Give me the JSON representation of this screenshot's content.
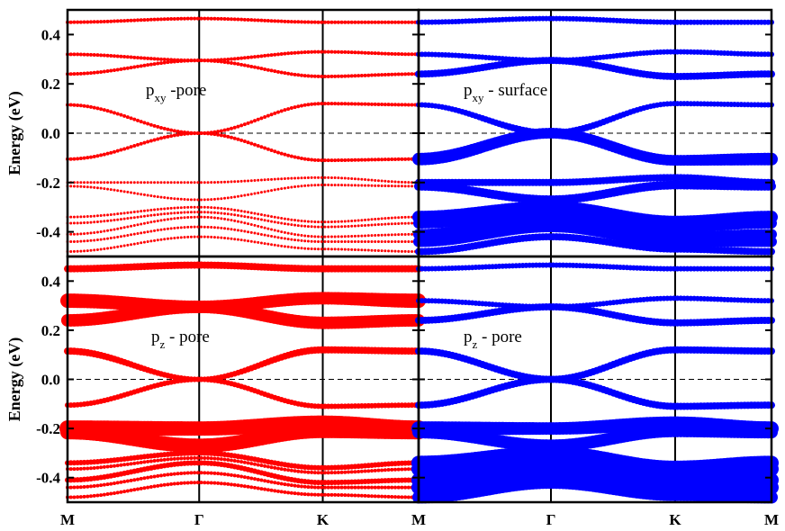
{
  "chart_data": {
    "type": "scatter",
    "ylabel": "Energy (eV)",
    "ylim": [
      -0.5,
      0.5
    ],
    "y_ticks": [
      "0.4",
      "0.2",
      "0.0",
      "-0.2",
      "-0.4"
    ],
    "y_tick_values": [
      0.4,
      0.2,
      0.0,
      -0.2,
      -0.4
    ],
    "x_ticks": [
      "M",
      "Γ",
      "K",
      "M"
    ],
    "fermi_level": 0.0,
    "panels": [
      {
        "label_main": "p",
        "label_sub": "xy",
        "label_rest": " -pore",
        "color": "#ff0000",
        "bands": [
          {
            "E": [
              0.45,
              0.465,
              0.45,
              0.45
            ],
            "w": [
              2,
              2,
              2,
              2
            ]
          },
          {
            "E": [
              0.32,
              0.295,
              0.33,
              0.32
            ],
            "w": [
              2,
              2,
              2,
              2
            ]
          },
          {
            "E": [
              0.24,
              0.295,
              0.23,
              0.24
            ],
            "w": [
              2,
              2,
              2,
              2
            ]
          },
          {
            "E": [
              0.115,
              0.0,
              0.12,
              0.115
            ],
            "w": [
              2,
              2,
              2,
              2
            ]
          },
          {
            "E": [
              -0.105,
              0.0,
              -0.11,
              -0.105
            ],
            "w": [
              2,
              2,
              2,
              2
            ]
          },
          {
            "E": [
              -0.2,
              -0.2,
              -0.18,
              -0.2
            ],
            "w": [
              1.5,
              1.5,
              1.5,
              1.5
            ]
          },
          {
            "E": [
              -0.215,
              -0.27,
              -0.21,
              -0.215
            ],
            "w": [
              1.5,
              1.5,
              1.5,
              1.5
            ]
          },
          {
            "E": [
              -0.34,
              -0.3,
              -0.36,
              -0.34
            ],
            "w": [
              1.5,
              1.5,
              1.5,
              1.5
            ]
          },
          {
            "E": [
              -0.365,
              -0.32,
              -0.38,
              -0.365
            ],
            "w": [
              1.5,
              1.5,
              1.5,
              1.5
            ]
          },
          {
            "E": [
              -0.41,
              -0.34,
              -0.42,
              -0.41
            ],
            "w": [
              1.5,
              1.5,
              1.5,
              1.5
            ]
          },
          {
            "E": [
              -0.44,
              -0.38,
              -0.44,
              -0.44
            ],
            "w": [
              1.5,
              1.5,
              1.5,
              1.5
            ]
          },
          {
            "E": [
              -0.48,
              -0.42,
              -0.47,
              -0.48
            ],
            "w": [
              1.5,
              1.5,
              1.5,
              1.5
            ]
          }
        ]
      },
      {
        "label_main": "p",
        "label_sub": "xy",
        "label_rest": " - surface",
        "color": "#0000ff",
        "bands": [
          {
            "E": [
              0.45,
              0.465,
              0.45,
              0.45
            ],
            "w": [
              3,
              3,
              3,
              3
            ]
          },
          {
            "E": [
              0.32,
              0.295,
              0.33,
              0.32
            ],
            "w": [
              3,
              3,
              3,
              3
            ]
          },
          {
            "E": [
              0.24,
              0.295,
              0.23,
              0.24
            ],
            "w": [
              4,
              4,
              4,
              4
            ]
          },
          {
            "E": [
              0.115,
              0.0,
              0.12,
              0.115
            ],
            "w": [
              3,
              4,
              3,
              3
            ]
          },
          {
            "E": [
              -0.105,
              0.0,
              -0.11,
              -0.105
            ],
            "w": [
              7,
              6,
              6,
              7
            ]
          },
          {
            "E": [
              -0.2,
              -0.2,
              -0.18,
              -0.2
            ],
            "w": [
              4,
              4,
              4,
              4
            ]
          },
          {
            "E": [
              -0.215,
              -0.27,
              -0.21,
              -0.215
            ],
            "w": [
              5,
              5,
              5,
              5
            ]
          },
          {
            "E": [
              -0.34,
              -0.3,
              -0.36,
              -0.34
            ],
            "w": [
              7,
              7,
              7,
              7
            ]
          },
          {
            "E": [
              -0.365,
              -0.32,
              -0.38,
              -0.365
            ],
            "w": [
              6,
              6,
              6,
              6
            ]
          },
          {
            "E": [
              -0.41,
              -0.34,
              -0.42,
              -0.41
            ],
            "w": [
              6,
              6,
              6,
              6
            ]
          },
          {
            "E": [
              -0.44,
              -0.38,
              -0.44,
              -0.44
            ],
            "w": [
              6,
              6,
              6,
              6
            ]
          },
          {
            "E": [
              -0.48,
              -0.42,
              -0.47,
              -0.48
            ],
            "w": [
              4,
              4,
              4,
              4
            ]
          }
        ]
      },
      {
        "label_main": "p",
        "label_sub": "z",
        "label_rest": " - pore",
        "color": "#ff0000",
        "bands": [
          {
            "E": [
              0.45,
              0.465,
              0.45,
              0.45
            ],
            "w": [
              4,
              4,
              4,
              4
            ]
          },
          {
            "E": [
              0.32,
              0.295,
              0.33,
              0.32
            ],
            "w": [
              8,
              7,
              7,
              8
            ]
          },
          {
            "E": [
              0.24,
              0.295,
              0.23,
              0.24
            ],
            "w": [
              7,
              7,
              7,
              7
            ]
          },
          {
            "E": [
              0.115,
              0.0,
              0.12,
              0.115
            ],
            "w": [
              4,
              3,
              4,
              4
            ]
          },
          {
            "E": [
              -0.105,
              0.0,
              -0.11,
              -0.105
            ],
            "w": [
              3,
              3,
              3,
              3
            ]
          },
          {
            "E": [
              -0.2,
              -0.2,
              -0.18,
              -0.2
            ],
            "w": [
              9,
              8,
              9,
              9
            ]
          },
          {
            "E": [
              -0.215,
              -0.27,
              -0.21,
              -0.215
            ],
            "w": [
              8,
              8,
              8,
              8
            ]
          },
          {
            "E": [
              -0.34,
              -0.3,
              -0.36,
              -0.34
            ],
            "w": [
              3,
              3,
              3,
              3
            ]
          },
          {
            "E": [
              -0.365,
              -0.32,
              -0.38,
              -0.365
            ],
            "w": [
              2,
              2,
              2,
              2
            ]
          },
          {
            "E": [
              -0.41,
              -0.34,
              -0.42,
              -0.41
            ],
            "w": [
              3,
              3,
              3,
              3
            ]
          },
          {
            "E": [
              -0.44,
              -0.38,
              -0.44,
              -0.44
            ],
            "w": [
              2,
              2,
              2,
              2
            ]
          },
          {
            "E": [
              -0.48,
              -0.42,
              -0.47,
              -0.48
            ],
            "w": [
              2,
              2,
              2,
              2
            ]
          }
        ]
      },
      {
        "label_main": "p",
        "label_sub": "z",
        "label_rest": " - pore",
        "color": "#0000ff",
        "bands": [
          {
            "E": [
              0.45,
              0.465,
              0.45,
              0.45
            ],
            "w": [
              3,
              3,
              3,
              3
            ]
          },
          {
            "E": [
              0.32,
              0.295,
              0.33,
              0.32
            ],
            "w": [
              3,
              3,
              3,
              3
            ]
          },
          {
            "E": [
              0.24,
              0.295,
              0.23,
              0.24
            ],
            "w": [
              4,
              4,
              4,
              4
            ]
          },
          {
            "E": [
              0.115,
              0.0,
              0.12,
              0.115
            ],
            "w": [
              4,
              4,
              4,
              4
            ]
          },
          {
            "E": [
              -0.105,
              0.0,
              -0.11,
              -0.105
            ],
            "w": [
              4,
              4,
              4,
              4
            ]
          },
          {
            "E": [
              -0.2,
              -0.2,
              -0.18,
              -0.2
            ],
            "w": [
              8,
              7,
              8,
              8
            ]
          },
          {
            "E": [
              -0.215,
              -0.27,
              -0.21,
              -0.215
            ],
            "w": [
              7,
              7,
              7,
              7
            ]
          },
          {
            "E": [
              -0.34,
              -0.3,
              -0.36,
              -0.34
            ],
            "w": [
              8,
              8,
              8,
              8
            ]
          },
          {
            "E": [
              -0.365,
              -0.32,
              -0.38,
              -0.365
            ],
            "w": [
              8,
              8,
              8,
              8
            ]
          },
          {
            "E": [
              -0.41,
              -0.34,
              -0.42,
              -0.41
            ],
            "w": [
              8,
              8,
              8,
              8
            ]
          },
          {
            "E": [
              -0.44,
              -0.38,
              -0.44,
              -0.44
            ],
            "w": [
              8,
              8,
              8,
              8
            ]
          },
          {
            "E": [
              -0.48,
              -0.42,
              -0.47,
              -0.48
            ],
            "w": [
              7,
              7,
              7,
              7
            ]
          }
        ]
      }
    ]
  }
}
